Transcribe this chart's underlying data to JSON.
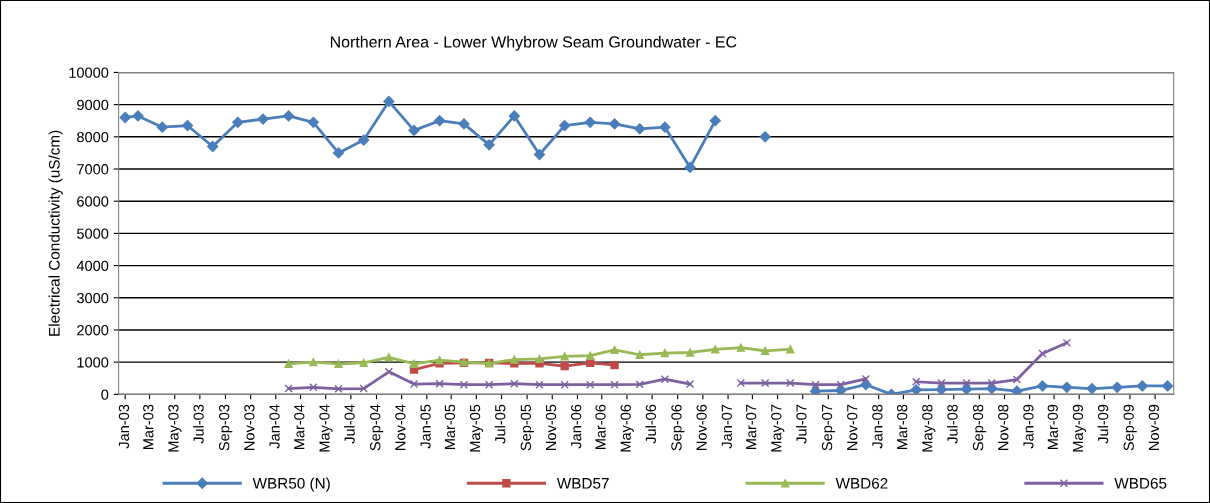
{
  "chart_data": {
    "type": "line",
    "title": "Northern Area - Lower Whybrow Seam Groundwater - EC",
    "ylabel": "Electrical Conductivity (uS/cm)",
    "ylim": [
      0,
      10000
    ],
    "yticks": [
      0,
      1000,
      2000,
      3000,
      4000,
      5000,
      6000,
      7000,
      8000,
      9000,
      10000
    ],
    "grid": "y",
    "legend": "bottom",
    "xlim": [
      "2002-12-16",
      "2009-12-16"
    ],
    "xticks": [
      {
        "value": "2003-01",
        "label": "Jan-03"
      },
      {
        "value": "2003-03",
        "label": "Mar-03"
      },
      {
        "value": "2003-05",
        "label": "May-03"
      },
      {
        "value": "2003-07",
        "label": "Jul-03"
      },
      {
        "value": "2003-09",
        "label": "Sep-03"
      },
      {
        "value": "2003-11",
        "label": "Nov-03"
      },
      {
        "value": "2004-01",
        "label": "Jan-04"
      },
      {
        "value": "2004-03",
        "label": "Mar-04"
      },
      {
        "value": "2004-05",
        "label": "May-04"
      },
      {
        "value": "2004-07",
        "label": "Jul-04"
      },
      {
        "value": "2004-09",
        "label": "Sep-04"
      },
      {
        "value": "2004-11",
        "label": "Nov-04"
      },
      {
        "value": "2005-01",
        "label": "Jan-05"
      },
      {
        "value": "2005-03",
        "label": "Mar-05"
      },
      {
        "value": "2005-05",
        "label": "May-05"
      },
      {
        "value": "2005-07",
        "label": "Jul-05"
      },
      {
        "value": "2005-09",
        "label": "Sep-05"
      },
      {
        "value": "2005-11",
        "label": "Nov-05"
      },
      {
        "value": "2006-01",
        "label": "Jan-06"
      },
      {
        "value": "2006-03",
        "label": "Mar-06"
      },
      {
        "value": "2006-05",
        "label": "May-06"
      },
      {
        "value": "2006-07",
        "label": "Jul-06"
      },
      {
        "value": "2006-09",
        "label": "Sep-06"
      },
      {
        "value": "2006-11",
        "label": "Nov-06"
      },
      {
        "value": "2007-01",
        "label": "Jan-07"
      },
      {
        "value": "2007-03",
        "label": "Mar-07"
      },
      {
        "value": "2007-05",
        "label": "May-07"
      },
      {
        "value": "2007-07",
        "label": "Jul-07"
      },
      {
        "value": "2007-09",
        "label": "Sep-07"
      },
      {
        "value": "2007-11",
        "label": "Nov-07"
      },
      {
        "value": "2008-01",
        "label": "Jan-08"
      },
      {
        "value": "2008-03",
        "label": "Mar-08"
      },
      {
        "value": "2008-05",
        "label": "May-08"
      },
      {
        "value": "2008-07",
        "label": "Jul-08"
      },
      {
        "value": "2008-09",
        "label": "Sep-08"
      },
      {
        "value": "2008-11",
        "label": "Nov-08"
      },
      {
        "value": "2009-01",
        "label": "Jan-09"
      },
      {
        "value": "2009-03",
        "label": "Mar-09"
      },
      {
        "value": "2009-05",
        "label": "May-09"
      },
      {
        "value": "2009-07",
        "label": "Jul-09"
      },
      {
        "value": "2009-09",
        "label": "Sep-09"
      },
      {
        "value": "2009-11",
        "label": "Nov-09"
      }
    ],
    "series": [
      {
        "name": "WBR50 (N)",
        "color": "#4a7ebb",
        "marker": "diamond",
        "x": [
          "2003-01",
          "2003-02",
          "2003-04",
          "2003-06",
          "2003-08",
          "2003-10",
          "2003-12",
          "2004-02",
          "2004-04",
          "2004-06",
          "2004-08",
          "2004-10",
          "2004-12",
          "2005-02",
          "2005-04",
          "2005-06",
          "2005-08",
          "2005-10",
          "2005-12",
          "2006-02",
          "2006-04",
          "2006-06",
          "2006-08",
          "2006-10",
          "2006-12",
          "2007-02",
          "2007-04",
          "2007-06",
          "2007-08",
          "2007-10",
          "2007-12",
          "2008-02",
          "2008-04",
          "2008-06",
          "2008-08",
          "2008-10",
          "2008-12",
          "2009-02",
          "2009-04",
          "2009-06",
          "2009-08",
          "2009-10",
          "2009-12"
        ],
        "values": [
          8600,
          8650,
          8300,
          8350,
          7700,
          8450,
          8550,
          8650,
          8450,
          7500,
          7900,
          9100,
          8200,
          8500,
          8400,
          7750,
          8650,
          7450,
          8350,
          8450,
          8400,
          8250,
          8300,
          7050,
          8500,
          null,
          8000,
          null,
          100,
          120,
          300,
          0,
          140,
          150,
          160,
          180,
          100,
          260,
          220,
          180,
          220,
          260,
          260
        ]
      },
      {
        "name": "WBD57",
        "color": "#be4b48",
        "marker": "square",
        "x": [
          "2004-12",
          "2005-02",
          "2005-04",
          "2005-06",
          "2005-08",
          "2005-10",
          "2005-12",
          "2006-02",
          "2006-04"
        ],
        "values": [
          770,
          960,
          980,
          980,
          960,
          960,
          880,
          980,
          910
        ]
      },
      {
        "name": "WBD62",
        "color": "#98b954",
        "marker": "triangle",
        "x": [
          "2004-02",
          "2004-04",
          "2004-06",
          "2004-08",
          "2004-10",
          "2004-12",
          "2005-02",
          "2005-04",
          "2005-06",
          "2005-08",
          "2005-10",
          "2005-12",
          "2006-02",
          "2006-04",
          "2006-06",
          "2006-08",
          "2006-10",
          "2006-12",
          "2007-02",
          "2007-04",
          "2007-06"
        ],
        "values": [
          950,
          1000,
          950,
          980,
          1150,
          950,
          1060,
          1000,
          960,
          1080,
          1100,
          1180,
          1200,
          1380,
          1230,
          1280,
          1300,
          1400,
          1450,
          1350,
          1400
        ]
      },
      {
        "name": "WBD65",
        "color": "#7d60a0",
        "marker": "cross",
        "x": [
          "2004-02",
          "2004-04",
          "2004-06",
          "2004-08",
          "2004-10",
          "2004-12",
          "2005-02",
          "2005-04",
          "2005-06",
          "2005-08",
          "2005-10",
          "2005-12",
          "2006-02",
          "2006-04",
          "2006-06",
          "2006-08",
          "2006-10",
          "2006-12",
          "2007-02",
          "2007-04",
          "2007-06",
          "2007-08",
          "2007-10",
          "2007-12",
          "2008-02",
          "2008-04",
          "2008-06",
          "2008-08",
          "2008-10",
          "2008-12",
          "2009-02",
          "2009-04"
        ],
        "values": [
          180,
          220,
          170,
          180,
          700,
          320,
          330,
          300,
          300,
          330,
          300,
          300,
          300,
          300,
          310,
          470,
          320,
          null,
          350,
          350,
          350,
          300,
          300,
          480,
          null,
          390,
          350,
          350,
          350,
          460,
          1270,
          1600
        ]
      }
    ]
  }
}
